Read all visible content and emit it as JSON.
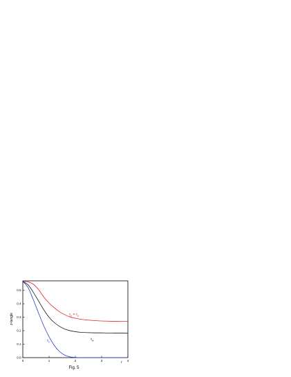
{
  "caption": "Fig. 5",
  "chart_data": {
    "type": "line",
    "xlabel": "r",
    "ylabel": "z-tangle",
    "xlim": [
      0,
      4
    ],
    "ylim": [
      0,
      0.57
    ],
    "xticks": [
      0,
      1,
      2,
      3,
      4
    ],
    "yticks": [
      0.0,
      0.1,
      0.2,
      0.3,
      0.4,
      0.5
    ],
    "xtick_labels": [
      "0",
      "1",
      "2",
      "3",
      "4"
    ],
    "ytick_labels": [
      "0.0",
      "0.1",
      "0.2",
      "0.3",
      "0.4",
      "0.5"
    ],
    "grid": false,
    "series": [
      {
        "name": "τ_p = τ_q",
        "label_parts": {
          "a": "τ",
          "a_sub": "p",
          "eq": "=",
          "b": "τ",
          "b_sub": "q"
        },
        "color": "#e8242b",
        "x": [
          0,
          0.2,
          0.4,
          0.6,
          0.8,
          1.0,
          1.2,
          1.4,
          1.6,
          1.8,
          2.0,
          2.2,
          2.4,
          2.6,
          2.8,
          3.0,
          3.2,
          3.4,
          3.6,
          3.8,
          4.0
        ],
        "y": [
          0.565,
          0.562,
          0.545,
          0.505,
          0.45,
          0.405,
          0.37,
          0.34,
          0.318,
          0.302,
          0.292,
          0.285,
          0.28,
          0.277,
          0.274,
          0.272,
          0.271,
          0.27,
          0.27,
          0.269,
          0.269
        ]
      },
      {
        "name": "τ_w",
        "label_parts": {
          "a": "τ",
          "a_sub": "w"
        },
        "color": "#1a1a1a",
        "x": [
          0,
          0.2,
          0.4,
          0.6,
          0.8,
          1.0,
          1.2,
          1.4,
          1.6,
          1.8,
          2.0,
          2.2,
          2.4,
          2.6,
          2.8,
          3.0,
          3.2,
          3.4,
          3.6,
          3.8,
          4.0
        ],
        "y": [
          0.565,
          0.54,
          0.485,
          0.42,
          0.355,
          0.3,
          0.26,
          0.232,
          0.212,
          0.2,
          0.193,
          0.188,
          0.186,
          0.185,
          0.184,
          0.184,
          0.183,
          0.183,
          0.182,
          0.182,
          0.181
        ]
      },
      {
        "name": "τ_C",
        "label_parts": {
          "a": "τ",
          "a_sub": "C"
        },
        "color": "#2a3fc4",
        "x": [
          0,
          0.2,
          0.4,
          0.6,
          0.8,
          1.0,
          1.2,
          1.4,
          1.6,
          1.8,
          2.0,
          2.2,
          2.4,
          2.6,
          2.8,
          3.0,
          3.2,
          3.4,
          3.6,
          3.8,
          4.0
        ],
        "y": [
          0.565,
          0.52,
          0.43,
          0.33,
          0.235,
          0.155,
          0.09,
          0.045,
          0.018,
          0.006,
          0.002,
          0.0,
          0.0,
          0.0,
          0.0,
          0.0,
          0.0,
          0.0,
          0.0,
          0.0,
          0.0
        ]
      }
    ]
  }
}
